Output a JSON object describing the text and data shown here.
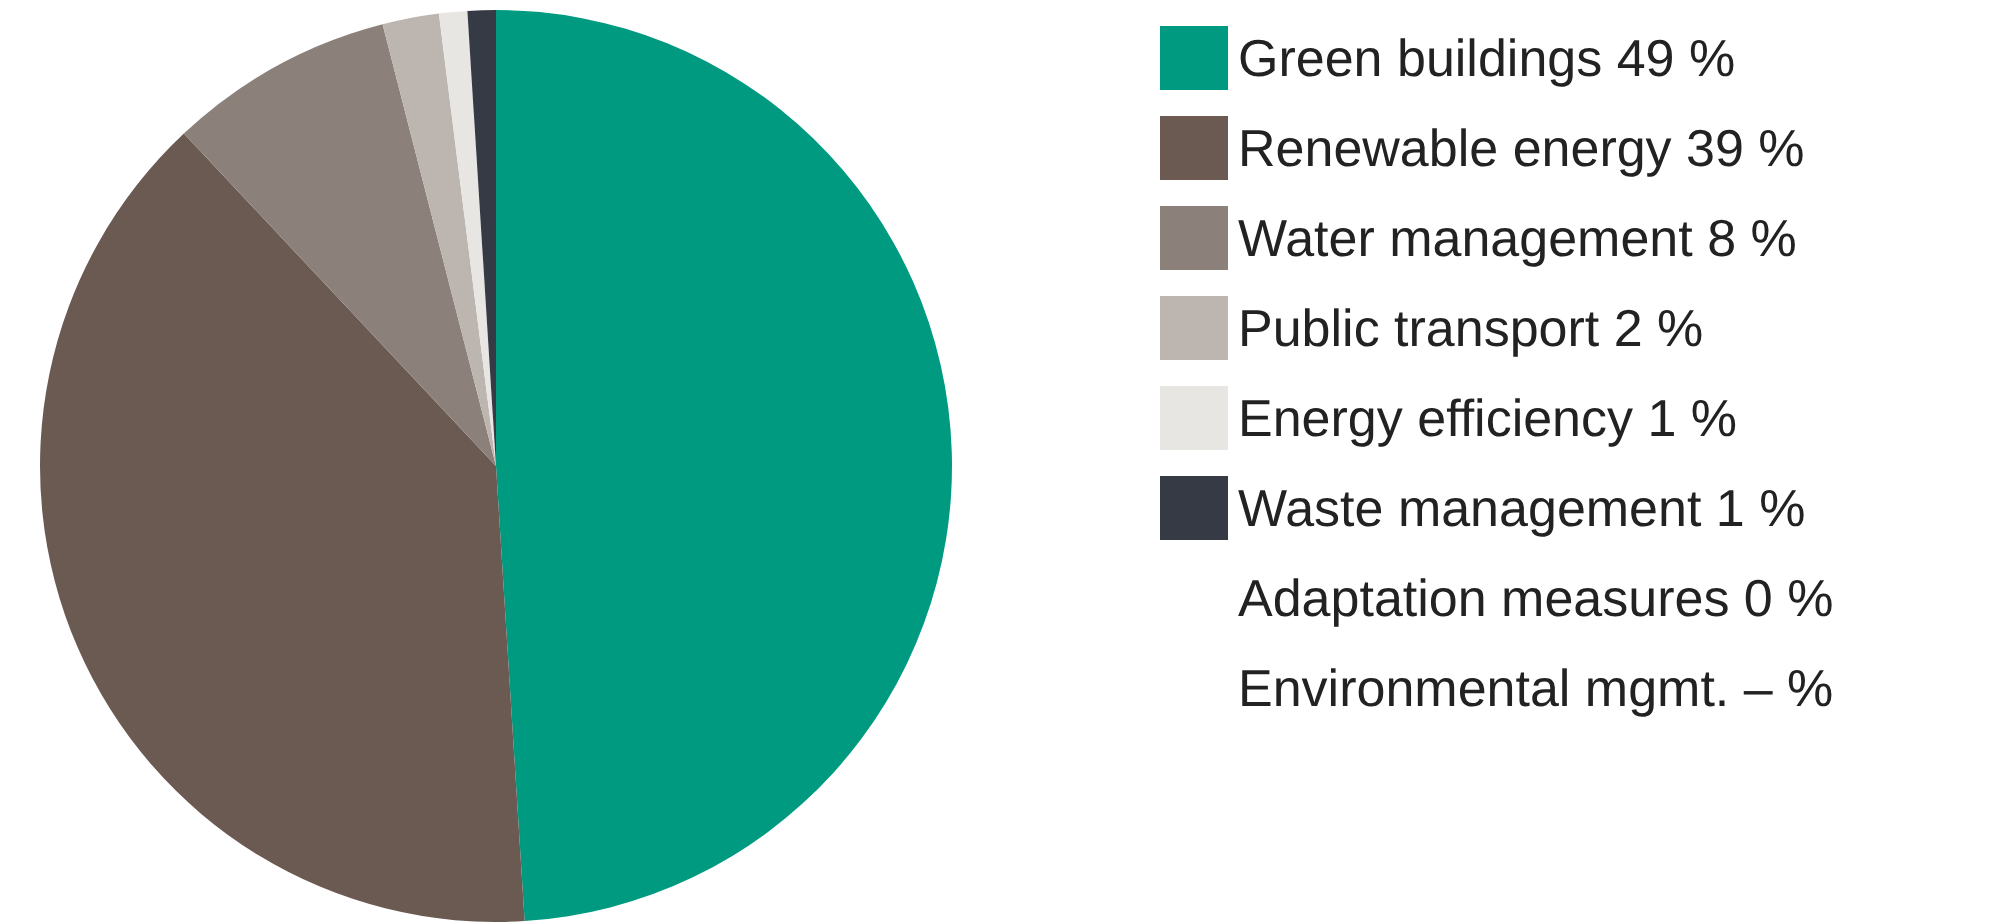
{
  "chart_data": {
    "type": "pie",
    "categories": [
      "Green buildings",
      "Renewable energy",
      "Water management",
      "Public transport",
      "Energy efficiency",
      "Waste management",
      "Adaptation measures",
      "Environmental mgmt."
    ],
    "values": [
      49,
      39,
      8,
      2,
      1,
      1,
      0,
      null
    ],
    "value_labels": [
      "49 %",
      "39 %",
      "8 %",
      "2 %",
      "1 %",
      "1 %",
      "0 %",
      "– %"
    ],
    "colors": [
      "#009a80",
      "#6b5a52",
      "#8c807b",
      "#bdb5b0",
      "#e8e6e2",
      "#353a45",
      null,
      null
    ],
    "legend": "right"
  }
}
